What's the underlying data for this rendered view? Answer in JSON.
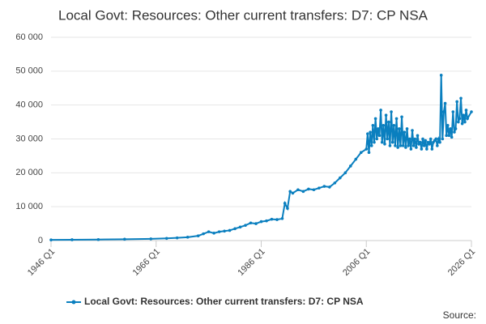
{
  "chart_data": {
    "type": "line",
    "title": "Local Govt: Resources: Other current transfers: D7: CP NSA",
    "source": "Source:",
    "x": [
      1946,
      1950,
      1955,
      1960,
      1965,
      1968,
      1970,
      1972,
      1974,
      1975,
      1976,
      1977,
      1978,
      1979,
      1980,
      1981,
      1982,
      1983,
      1984,
      1985,
      1986,
      1987,
      1988,
      1989,
      1990,
      1990.5,
      1991,
      1991.5,
      1992,
      1993,
      1994,
      1995,
      1996,
      1997,
      1998,
      1999,
      2000,
      2001,
      2002,
      2003,
      2004,
      2005,
      2006,
      2006.25,
      2006.5,
      2006.75,
      2007,
      2007.25,
      2007.5,
      2007.75,
      2008,
      2008.25,
      2008.5,
      2008.75,
      2009,
      2009.25,
      2009.5,
      2009.75,
      2010,
      2010.25,
      2010.5,
      2010.75,
      2011,
      2011.25,
      2011.5,
      2011.75,
      2012,
      2012.25,
      2012.5,
      2012.75,
      2013,
      2013.25,
      2013.5,
      2013.75,
      2014,
      2014.25,
      2014.5,
      2014.75,
      2015,
      2015.25,
      2015.5,
      2015.75,
      2016,
      2016.25,
      2016.5,
      2016.75,
      2017,
      2017.25,
      2017.5,
      2017.75,
      2018,
      2018.25,
      2018.5,
      2018.75,
      2019,
      2019.25,
      2019.5,
      2019.75,
      2020,
      2020.25,
      2020.5,
      2020.75,
      2021,
      2021.25,
      2021.5,
      2021.75,
      2022,
      2022.25,
      2022.5,
      2022.75,
      2023,
      2023.25,
      2023.5,
      2023.75,
      2024,
      2024.25,
      2024.5,
      2024.75,
      2025,
      2025.25,
      2026
    ],
    "series": [
      {
        "name": "Local Govt: Resources: Other current transfers: D7: CP NSA",
        "color": "#0a7fbf",
        "values": [
          200,
          250,
          300,
          400,
          500,
          650,
          800,
          1000,
          1400,
          2000,
          2600,
          2200,
          2600,
          2800,
          3000,
          3500,
          4000,
          4500,
          5200,
          5000,
          5600,
          5800,
          6300,
          6200,
          6500,
          11000,
          9500,
          14500,
          14000,
          15000,
          14500,
          15200,
          15000,
          15500,
          16000,
          15800,
          17000,
          18500,
          20000,
          22000,
          24000,
          26000,
          27000,
          31500,
          26000,
          32000,
          28000,
          34000,
          29000,
          36000,
          30000,
          33000,
          31000,
          38500,
          29000,
          34000,
          28500,
          37000,
          30000,
          35000,
          28000,
          38000,
          29000,
          34000,
          28000,
          36000,
          27500,
          33000,
          28000,
          36500,
          28000,
          32000,
          27500,
          33000,
          28000,
          30000,
          27000,
          32500,
          28000,
          30000,
          27500,
          31000,
          28500,
          29000,
          27000,
          30000,
          28000,
          29500,
          27000,
          29000,
          28500,
          30000,
          27000,
          29000,
          29500,
          30000,
          28000,
          30000,
          29000,
          48800,
          30000,
          38000,
          40500,
          31000,
          34000,
          31000,
          33000,
          30500,
          38000,
          32000,
          33000,
          41000,
          35000,
          36000,
          42000,
          34500,
          37000,
          35000,
          38500,
          36000,
          38000
        ]
      }
    ],
    "xlim": [
      1946,
      2026
    ],
    "xticks": [
      {
        "value": 1946,
        "label": "1946 Q1"
      },
      {
        "value": 1966,
        "label": "1966 Q1"
      },
      {
        "value": 1986,
        "label": "1986 Q1"
      },
      {
        "value": 2006,
        "label": "2006 Q1"
      },
      {
        "value": 2026,
        "label": "2026 Q1"
      }
    ],
    "ylim": [
      0,
      60000
    ],
    "yticks": [
      0,
      {
        "value": 10000,
        "label": "10 000"
      },
      {
        "value": 20000,
        "label": "20 000"
      },
      {
        "value": 30000,
        "label": "30 000"
      },
      {
        "value": 40000,
        "label": "40 000"
      },
      {
        "value": 50000,
        "label": "50 000"
      },
      {
        "value": 60000,
        "label": "60 000"
      }
    ],
    "grid": true
  }
}
